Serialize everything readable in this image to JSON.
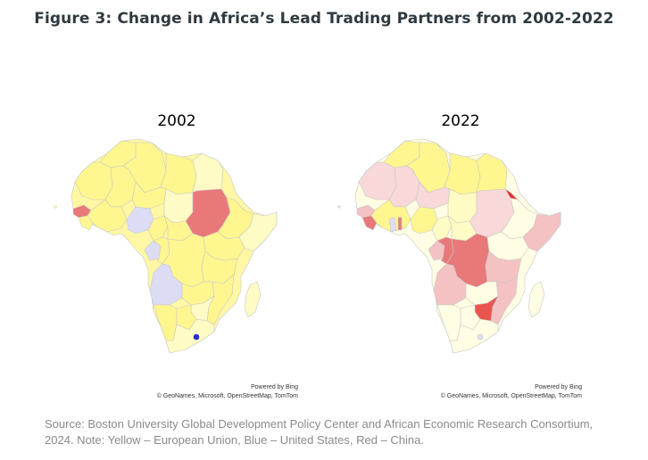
{
  "title": "Figure 3: Change in Africa’s Lead Trading Partners from 2002-2022",
  "maps": [
    {
      "year": "2002",
      "attribution_line1": "Powered by Bing",
      "attribution_line2": "© GeoNames, Microsoft, OpenStreetMap, TomTom"
    },
    {
      "year": "2022",
      "attribution_line1": "Powered by Bing",
      "attribution_line2": "© GeoNames, Microsoft, OpenStreetMap, TomTom"
    }
  ],
  "source_note": "Source: Boston University Global Development Policy Center and African Economic Research Consortium, 2024. Note: Yellow – European Union, Blue – United States, Red – China.",
  "colors": {
    "eu_yellow": "#fff68f",
    "eu_yellow_light": "#fffbc4",
    "eu_yellow_pale": "#fffde3",
    "us_blue_light": "#dcdcf5",
    "us_blue_dark": "#2b2bd1",
    "china_red": "#e97979",
    "china_red_strong": "#e52b2b",
    "china_red_light": "#f4c2c2",
    "china_red_pale": "#f8d8d8",
    "border": "#bdbdbd"
  }
}
